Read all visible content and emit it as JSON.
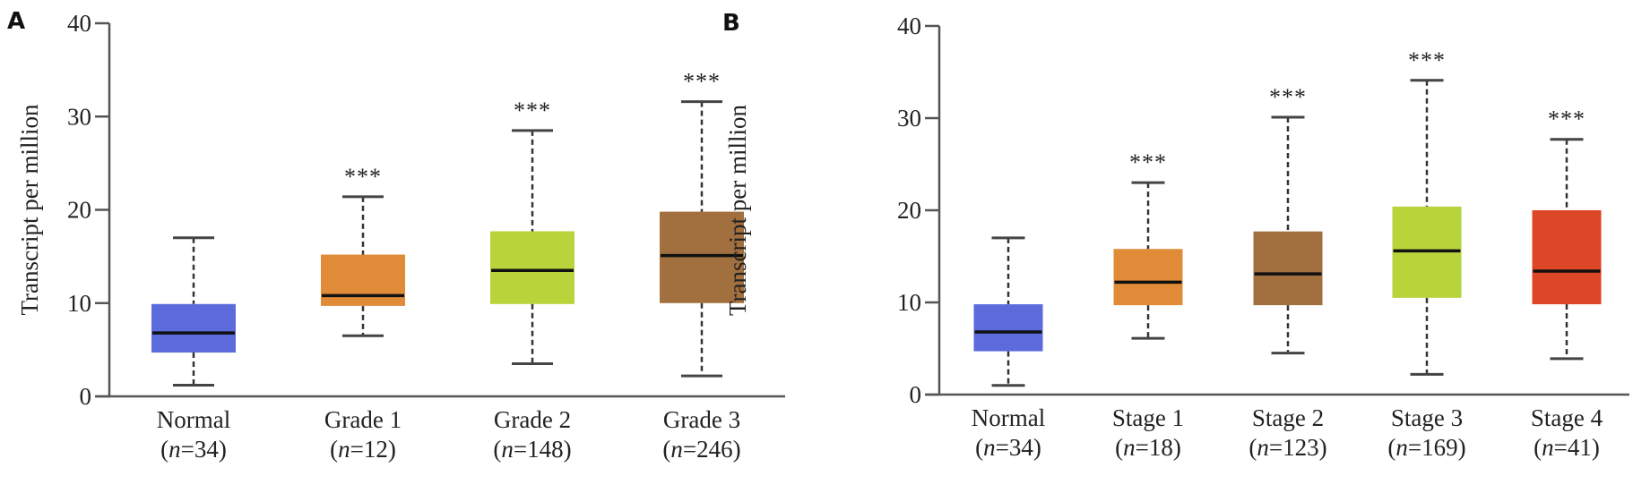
{
  "chart_data": [
    {
      "panel": "A",
      "type": "box",
      "title": "",
      "xlabel": "",
      "ylabel": "Transcript per million",
      "ylim": [
        0,
        40
      ],
      "yticks": [
        0,
        10,
        20,
        30,
        40
      ],
      "grid": false,
      "categories": [
        "Normal",
        "Grade 1",
        "Grade 2",
        "Grade 3"
      ],
      "sample_sizes": [
        "(n=34)",
        "(n=12)",
        "(n=148)",
        "(n=246)"
      ],
      "boxes": [
        {
          "name": "Normal",
          "n": 34,
          "whisker_low": 1.2,
          "q1": 4.7,
          "median": 6.8,
          "q3": 9.9,
          "whisker_high": 17.0,
          "color": "#5b6bdc",
          "significance": ""
        },
        {
          "name": "Grade 1",
          "n": 12,
          "whisker_low": 6.5,
          "q1": 9.7,
          "median": 10.8,
          "q3": 15.2,
          "whisker_high": 21.4,
          "color": "#df8b37",
          "significance": "***"
        },
        {
          "name": "Grade 2",
          "n": 148,
          "whisker_low": 3.5,
          "q1": 9.9,
          "median": 13.5,
          "q3": 17.7,
          "whisker_high": 28.5,
          "color": "#b8d43b",
          "significance": "***"
        },
        {
          "name": "Grade 3",
          "n": 246,
          "whisker_low": 2.2,
          "q1": 10.0,
          "median": 15.1,
          "q3": 19.8,
          "whisker_high": 31.6,
          "color": "#a1703e",
          "significance": "***"
        }
      ]
    },
    {
      "panel": "B",
      "type": "box",
      "title": "",
      "xlabel": "",
      "ylabel": "Transcript per million",
      "ylim": [
        0,
        40
      ],
      "yticks": [
        0,
        10,
        20,
        30,
        40
      ],
      "grid": false,
      "categories": [
        "Normal",
        "Stage 1",
        "Stage 2",
        "Stage 3",
        "Stage 4"
      ],
      "sample_sizes": [
        "(n=34)",
        "(n=18)",
        "(n=123)",
        "(n=169)",
        "(n=41)"
      ],
      "boxes": [
        {
          "name": "Normal",
          "n": 34,
          "whisker_low": 1.0,
          "q1": 4.7,
          "median": 6.8,
          "q3": 9.8,
          "whisker_high": 17.0,
          "color": "#5b6bdc",
          "significance": ""
        },
        {
          "name": "Stage 1",
          "n": 18,
          "whisker_low": 6.1,
          "q1": 9.7,
          "median": 12.2,
          "q3": 15.8,
          "whisker_high": 23.0,
          "color": "#df8b37",
          "significance": "***"
        },
        {
          "name": "Stage 2",
          "n": 123,
          "whisker_low": 4.5,
          "q1": 9.7,
          "median": 13.1,
          "q3": 17.7,
          "whisker_high": 30.1,
          "color": "#a1703e",
          "significance": "***"
        },
        {
          "name": "Stage 3",
          "n": 169,
          "whisker_low": 2.2,
          "q1": 10.5,
          "median": 15.6,
          "q3": 20.4,
          "whisker_high": 34.1,
          "color": "#b8d43b",
          "significance": "***"
        },
        {
          "name": "Stage 4",
          "n": 41,
          "whisker_low": 3.9,
          "q1": 9.8,
          "median": 13.4,
          "q3": 20.0,
          "whisker_high": 27.7,
          "color": "#dd4626",
          "significance": "***"
        }
      ]
    }
  ]
}
